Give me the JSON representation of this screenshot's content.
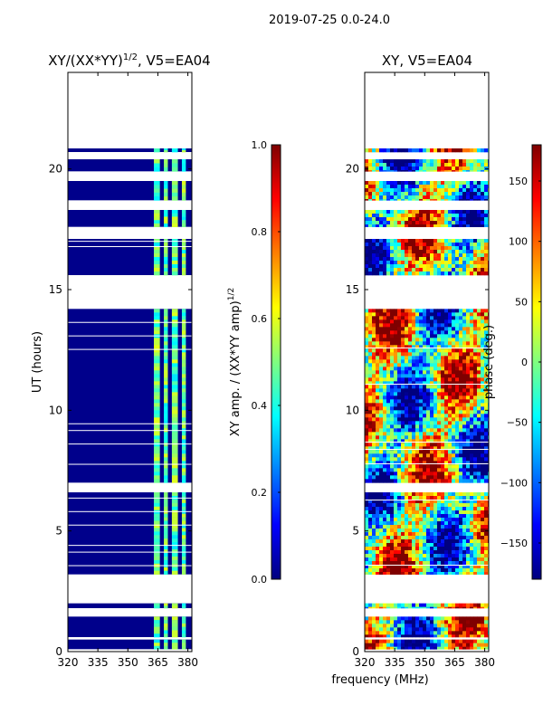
{
  "suptitle": "2019-07-25 0.0-24.0",
  "colors": {
    "background": "#ffffff",
    "no_data": "#ffffff",
    "low_amp": "#00008b",
    "jet": [
      "#00007f",
      "#0000ff",
      "#007fff",
      "#00ffff",
      "#7fff7f",
      "#ffff00",
      "#ff7f00",
      "#ff0000",
      "#7f0000"
    ]
  },
  "chart_data": [
    {
      "type": "heatmap",
      "name": "normalized-amplitude",
      "title_text": "XY/(XX*YY)",
      "title_superscript": "1/2",
      "title_suffix": ", V5=EA04",
      "xlabel": "",
      "ylabel": "UT (hours)",
      "xlim": [
        320,
        382
      ],
      "ylim": [
        0,
        24
      ],
      "xticks": [
        320,
        335,
        350,
        365,
        380
      ],
      "yticks": [
        0,
        5,
        10,
        15,
        20
      ],
      "data_segments_ut": [
        [
          0.1,
          0.5
        ],
        [
          0.6,
          1.45
        ],
        [
          1.8,
          2.0
        ],
        [
          3.2,
          6.6
        ],
        [
          7.0,
          14.2
        ],
        [
          15.6,
          17.1
        ],
        [
          17.6,
          18.3
        ],
        [
          18.7,
          19.5
        ],
        [
          19.9,
          20.4
        ],
        [
          20.7,
          20.85
        ]
      ],
      "bright_channel_bands_mhz": [
        [
          363,
          366
        ],
        [
          368,
          370
        ],
        [
          372,
          375
        ],
        [
          377,
          379
        ]
      ],
      "colorbar": {
        "label_text": "XY amp. / (XX*YY amp)",
        "label_superscript": "1/2",
        "range": [
          0.0,
          1.0
        ],
        "ticks": [
          "0.0",
          "0.2",
          "0.4",
          "0.6",
          "0.8",
          "1.0"
        ]
      }
    },
    {
      "type": "heatmap",
      "name": "phase",
      "title_text": "XY, V5=EA04",
      "xlabel": "frequency (MHz)",
      "ylabel": "",
      "xlim": [
        320,
        382
      ],
      "ylim": [
        0,
        24
      ],
      "xticks": [
        320,
        335,
        350,
        365,
        380
      ],
      "yticks": [
        0,
        5,
        10,
        15,
        20
      ],
      "data_segments_ut": [
        [
          0.1,
          0.5
        ],
        [
          0.6,
          1.45
        ],
        [
          1.8,
          2.0
        ],
        [
          3.2,
          6.6
        ],
        [
          7.0,
          14.2
        ],
        [
          15.6,
          17.1
        ],
        [
          17.6,
          18.3
        ],
        [
          18.7,
          19.5
        ],
        [
          19.9,
          20.4
        ],
        [
          20.7,
          20.85
        ]
      ],
      "colorbar": {
        "label_text": "phase (deg.)",
        "range": [
          -180,
          180
        ],
        "ticks": [
          "−150",
          "−100",
          "−50",
          "0",
          "50",
          "100",
          "150"
        ]
      }
    }
  ]
}
